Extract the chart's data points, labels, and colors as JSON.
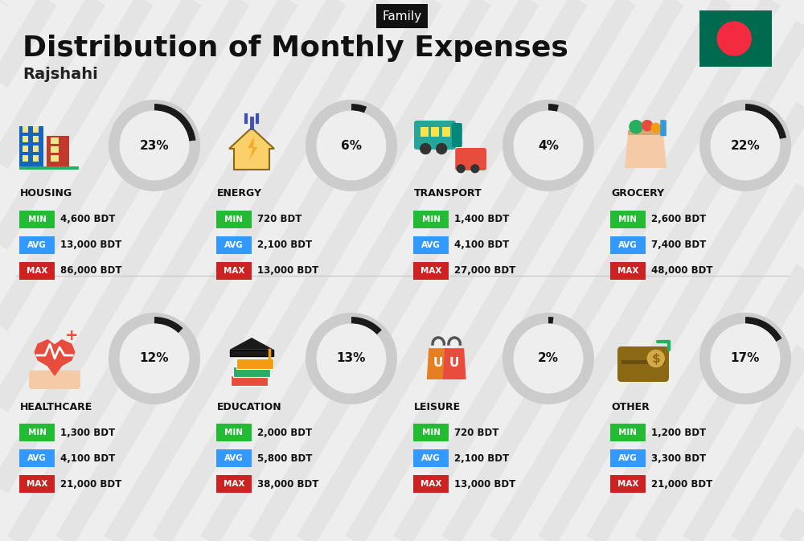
{
  "title": "Distribution of Monthly Expenses",
  "subtitle": "Rajshahi",
  "header_label": "Family",
  "bg_color": "#eeeeee",
  "categories": [
    {
      "name": "HOUSING",
      "pct": 23,
      "min": "4,600 BDT",
      "avg": "13,000 BDT",
      "max": "86,000 BDT",
      "col": 0,
      "row": 0
    },
    {
      "name": "ENERGY",
      "pct": 6,
      "min": "720 BDT",
      "avg": "2,100 BDT",
      "max": "13,000 BDT",
      "col": 1,
      "row": 0
    },
    {
      "name": "TRANSPORT",
      "pct": 4,
      "min": "1,400 BDT",
      "avg": "4,100 BDT",
      "max": "27,000 BDT",
      "col": 2,
      "row": 0
    },
    {
      "name": "GROCERY",
      "pct": 22,
      "min": "2,600 BDT",
      "avg": "7,400 BDT",
      "max": "48,000 BDT",
      "col": 3,
      "row": 0
    },
    {
      "name": "HEALTHCARE",
      "pct": 12,
      "min": "1,300 BDT",
      "avg": "4,100 BDT",
      "max": "21,000 BDT",
      "col": 0,
      "row": 1
    },
    {
      "name": "EDUCATION",
      "pct": 13,
      "min": "2,000 BDT",
      "avg": "5,800 BDT",
      "max": "38,000 BDT",
      "col": 1,
      "row": 1
    },
    {
      "name": "LEISURE",
      "pct": 2,
      "min": "720 BDT",
      "avg": "2,100 BDT",
      "max": "13,000 BDT",
      "col": 2,
      "row": 1
    },
    {
      "name": "OTHER",
      "pct": 17,
      "min": "1,200 BDT",
      "avg": "3,300 BDT",
      "max": "21,000 BDT",
      "col": 3,
      "row": 1
    }
  ],
  "min_color": "#22bb33",
  "avg_color": "#3399ff",
  "max_color": "#cc2222",
  "donut_filled_color": "#1a1a1a",
  "donut_empty_color": "#cccccc",
  "title_color": "#111111",
  "subtitle_color": "#222222",
  "flag_green": "#006a4e",
  "flag_red": "#f42a41"
}
